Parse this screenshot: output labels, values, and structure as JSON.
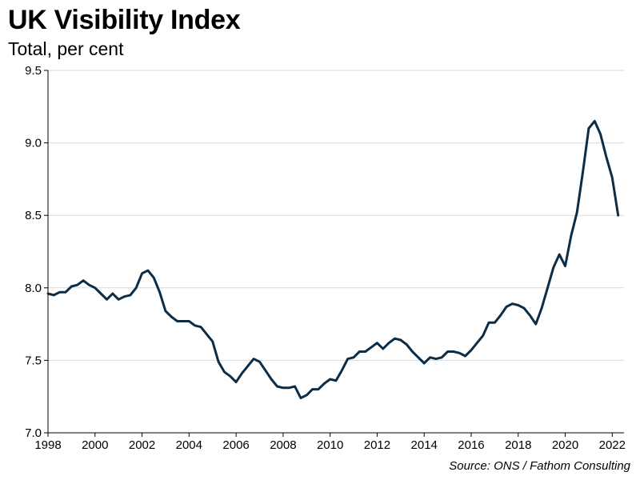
{
  "title": "UK Visibility Index",
  "subtitle": "Total, per cent",
  "source": "Source: ONS / Fathom Consulting",
  "colors": {
    "line": "#0d2c45",
    "grid": "#d9d9d9",
    "axis": "#000000"
  },
  "chart_data": {
    "type": "line",
    "title": "UK Visibility Index",
    "subtitle": "Total, per cent",
    "xlabel": "",
    "ylabel": "",
    "ylim": [
      7.0,
      9.5
    ],
    "xlim": [
      1998,
      2022.5
    ],
    "yticks": [
      "7.0",
      "7.5",
      "8.0",
      "8.5",
      "9.0",
      "9.5"
    ],
    "xticks": [
      "1998",
      "2000",
      "2002",
      "2004",
      "2006",
      "2008",
      "2010",
      "2012",
      "2014",
      "2016",
      "2018",
      "2020",
      "2022"
    ],
    "grid": true,
    "legend": "none",
    "series": [
      {
        "x": [
          1998.0,
          1998.25,
          1998.5,
          1998.75,
          1999.0,
          1999.25,
          1999.5,
          1999.75,
          2000.0,
          2000.25,
          2000.5,
          2000.75,
          2001.0,
          2001.25,
          2001.5,
          2001.75,
          2002.0,
          2002.25,
          2002.5,
          2002.75,
          2003.0,
          2003.25,
          2003.5,
          2003.75,
          2004.0,
          2004.25,
          2004.5,
          2004.75,
          2005.0,
          2005.25,
          2005.5,
          2005.75,
          2006.0,
          2006.25,
          2006.5,
          2006.75,
          2007.0,
          2007.25,
          2007.5,
          2007.75,
          2008.0,
          2008.25,
          2008.5,
          2008.75,
          2009.0,
          2009.25,
          2009.5,
          2009.75,
          2010.0,
          2010.25,
          2010.5,
          2010.75,
          2011.0,
          2011.25,
          2011.5,
          2011.75,
          2012.0,
          2012.25,
          2012.5,
          2012.75,
          2013.0,
          2013.25,
          2013.5,
          2013.75,
          2014.0,
          2014.25,
          2014.5,
          2014.75,
          2015.0,
          2015.25,
          2015.5,
          2015.75,
          2016.0,
          2016.25,
          2016.5,
          2016.75,
          2017.0,
          2017.25,
          2017.5,
          2017.75,
          2018.0,
          2018.25,
          2018.5,
          2018.75,
          2019.0,
          2019.25,
          2019.5,
          2019.75,
          2020.0,
          2020.25,
          2020.5,
          2020.75,
          2021.0,
          2021.25,
          2021.5,
          2021.75,
          2022.0,
          2022.25
        ],
        "values": [
          7.96,
          7.95,
          7.97,
          7.97,
          8.01,
          8.02,
          8.05,
          8.02,
          8.0,
          7.96,
          7.92,
          7.96,
          7.92,
          7.94,
          7.95,
          8.0,
          8.1,
          8.12,
          8.07,
          7.97,
          7.84,
          7.8,
          7.77,
          7.77,
          7.77,
          7.74,
          7.73,
          7.68,
          7.63,
          7.49,
          7.42,
          7.39,
          7.35,
          7.41,
          7.46,
          7.51,
          7.49,
          7.43,
          7.37,
          7.32,
          7.31,
          7.31,
          7.32,
          7.24,
          7.26,
          7.3,
          7.3,
          7.34,
          7.37,
          7.36,
          7.43,
          7.51,
          7.52,
          7.56,
          7.56,
          7.59,
          7.62,
          7.58,
          7.62,
          7.65,
          7.64,
          7.61,
          7.56,
          7.52,
          7.48,
          7.52,
          7.51,
          7.52,
          7.56,
          7.56,
          7.55,
          7.53,
          7.57,
          7.62,
          7.67,
          7.76,
          7.76,
          7.81,
          7.87,
          7.89,
          7.88,
          7.86,
          7.81,
          7.75,
          7.86,
          8.0,
          8.14,
          8.23,
          8.15,
          8.36,
          8.52,
          8.8,
          9.1,
          9.15,
          9.06,
          8.9,
          8.76,
          8.5
        ]
      }
    ]
  }
}
